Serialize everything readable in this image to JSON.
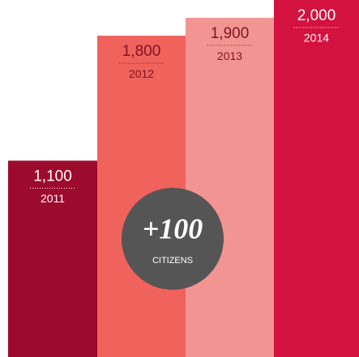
{
  "chart_data": {
    "type": "bar",
    "categories": [
      "2011",
      "2012",
      "2013",
      "2014"
    ],
    "values": [
      1100,
      1800,
      1900,
      2000
    ],
    "value_labels": [
      "1,100",
      "1,800",
      "1,900",
      "2,000"
    ],
    "colors": [
      "#9c0a2d",
      "#f0625c",
      "#f29492",
      "#d4123f"
    ],
    "label_colors": [
      "#ffffff",
      "#7e1620",
      "#7e1620",
      "#ffffff"
    ],
    "ylim": [
      0,
      2000
    ],
    "annotation": {
      "text": "+100",
      "subtext": "CITIZENS"
    }
  }
}
